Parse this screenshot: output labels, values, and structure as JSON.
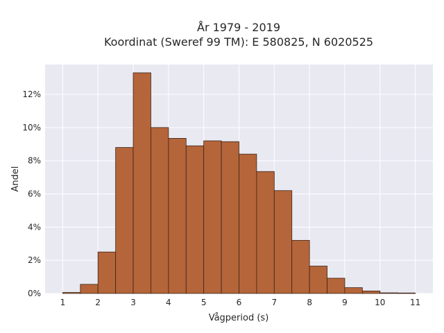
{
  "chart_data": {
    "type": "bar",
    "title": "År 1979 - 2019",
    "subtitle": "Koordinat (Sweref 99 TM): E 580825, N 6020525",
    "xlabel": "Vågperiod (s)",
    "ylabel": "Andel",
    "bin_width": 0.5,
    "bins": [
      {
        "x0": 1.0,
        "value": 0.06
      },
      {
        "x0": 1.5,
        "value": 0.55
      },
      {
        "x0": 2.0,
        "value": 2.5
      },
      {
        "x0": 2.5,
        "value": 8.8
      },
      {
        "x0": 3.0,
        "value": 13.3
      },
      {
        "x0": 3.5,
        "value": 10.0
      },
      {
        "x0": 4.0,
        "value": 9.35
      },
      {
        "x0": 4.5,
        "value": 8.9
      },
      {
        "x0": 5.0,
        "value": 9.2
      },
      {
        "x0": 5.5,
        "value": 9.15
      },
      {
        "x0": 6.0,
        "value": 8.4
      },
      {
        "x0": 6.5,
        "value": 7.35
      },
      {
        "x0": 7.0,
        "value": 6.2
      },
      {
        "x0": 7.5,
        "value": 3.2
      },
      {
        "x0": 8.0,
        "value": 1.65
      },
      {
        "x0": 8.5,
        "value": 0.92
      },
      {
        "x0": 9.0,
        "value": 0.35
      },
      {
        "x0": 9.5,
        "value": 0.15
      },
      {
        "x0": 10.0,
        "value": 0.04
      },
      {
        "x0": 10.5,
        "value": 0.03
      }
    ],
    "xticks": [
      1,
      2,
      3,
      4,
      5,
      6,
      7,
      8,
      9,
      10,
      11
    ],
    "yticks": [
      0,
      2,
      4,
      6,
      8,
      10,
      12
    ],
    "ytick_labels": [
      "0%",
      "2%",
      "4%",
      "6%",
      "8%",
      "10%",
      "12%"
    ],
    "xlim": [
      0.5,
      11.5
    ],
    "ylim": [
      0,
      13.8
    ],
    "grid": true,
    "colors": {
      "bar_fill": "#b5653a",
      "bar_stroke": "#3b2416",
      "plot_bg": "#e9e9f2",
      "grid": "#ffffff"
    }
  }
}
